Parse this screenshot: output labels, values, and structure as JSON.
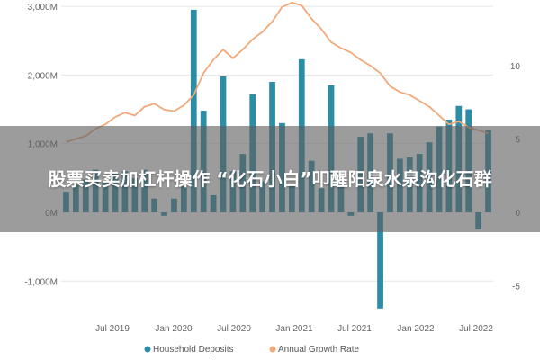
{
  "overlay_title": "股票买卖加杠杆操作 “化石小白”叩醒阳泉水泉沟化石群",
  "chart_data": {
    "type": "bar+line",
    "title": "",
    "y_left": {
      "ticks": [
        "3,000M",
        "2,000M",
        "1,000M",
        "0M",
        "-1,000M"
      ],
      "lim": [
        -1500,
        3000
      ]
    },
    "y_right": {
      "ticks": [
        "10",
        "5",
        "0",
        "-5"
      ],
      "lim": [
        -10,
        15
      ]
    },
    "x_ticks": [
      "Jul 2019",
      "Jan 2020",
      "Jul 2020",
      "Jan 2021",
      "Jul 2021",
      "Jan 2022",
      "Jul 2022"
    ],
    "series": [
      {
        "name": "Household Deposits",
        "type": "bar",
        "color": "#2b8da6",
        "values": [
          300,
          400,
          480,
          620,
          450,
          580,
          600,
          500,
          620,
          200,
          -50,
          200,
          380,
          2950,
          1480,
          250,
          1980,
          600,
          850,
          1720,
          450,
          1900,
          1300,
          380,
          2230,
          750,
          350,
          1850,
          400,
          -50,
          1100,
          1150,
          -1400,
          1150,
          780,
          800,
          850,
          1020,
          1250,
          1350,
          1550,
          1500,
          -250,
          1200
        ]
      },
      {
        "name": "Annual Growth Rate",
        "type": "line",
        "color": "#f0a97a",
        "values": [
          4.8,
          5.0,
          5.2,
          5.7,
          6.0,
          6.5,
          6.8,
          6.6,
          7.2,
          7.4,
          7.0,
          6.9,
          7.3,
          8.0,
          9.5,
          10.4,
          11.1,
          10.5,
          11.1,
          11.8,
          12.3,
          13.0,
          14.0,
          14.3,
          14.1,
          13.2,
          12.5,
          11.6,
          11.2,
          10.9,
          10.4,
          10.0,
          9.5,
          8.6,
          8.2,
          8.0,
          7.6,
          7.2,
          6.6,
          6.0,
          6.2,
          5.8,
          5.6,
          5.4
        ]
      }
    ],
    "grid": true,
    "legend_position": "bottom"
  }
}
